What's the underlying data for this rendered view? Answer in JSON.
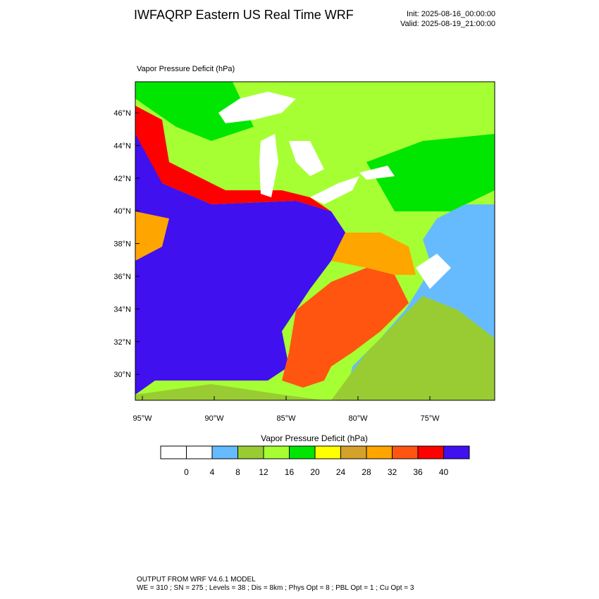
{
  "header": {
    "title": "IWFAQRP Eastern US Real Time WRF",
    "init": "Init: 2025-08-16_00:00:00",
    "valid": "Valid: 2025-08-19_21:00:00"
  },
  "map": {
    "title": "Vapor Pressure Deficit   (hPa)",
    "lat_labels": [
      "46°N",
      "44°N",
      "42°N",
      "40°N",
      "38°N",
      "36°N",
      "34°N",
      "32°N",
      "30°N"
    ],
    "lon_labels": [
      "95°W",
      "90°W",
      "85°W",
      "80°W",
      "75°W"
    ]
  },
  "colorbar": {
    "title": "Vapor Pressure Deficit  (hPa)",
    "colors": [
      "#ffffff",
      "#ffffff",
      "#66bbff",
      "#99cc33",
      "#a6ff33",
      "#00e600",
      "#ffff00",
      "#d4a12a",
      "#ffa500",
      "#ff5511",
      "#ff0000",
      "#4010ee"
    ],
    "ticks": [
      0,
      4,
      8,
      12,
      16,
      20,
      24,
      28,
      32,
      36,
      40
    ]
  },
  "footer": {
    "line1": "OUTPUT FROM WRF V4.6.1 MODEL",
    "line2": "WE = 310 ; SN = 275 ; Levels = 38 ; Dis = 8km ; Phys Opt = 8 ; PBL Opt = 1 ; Cu Opt = 3"
  }
}
